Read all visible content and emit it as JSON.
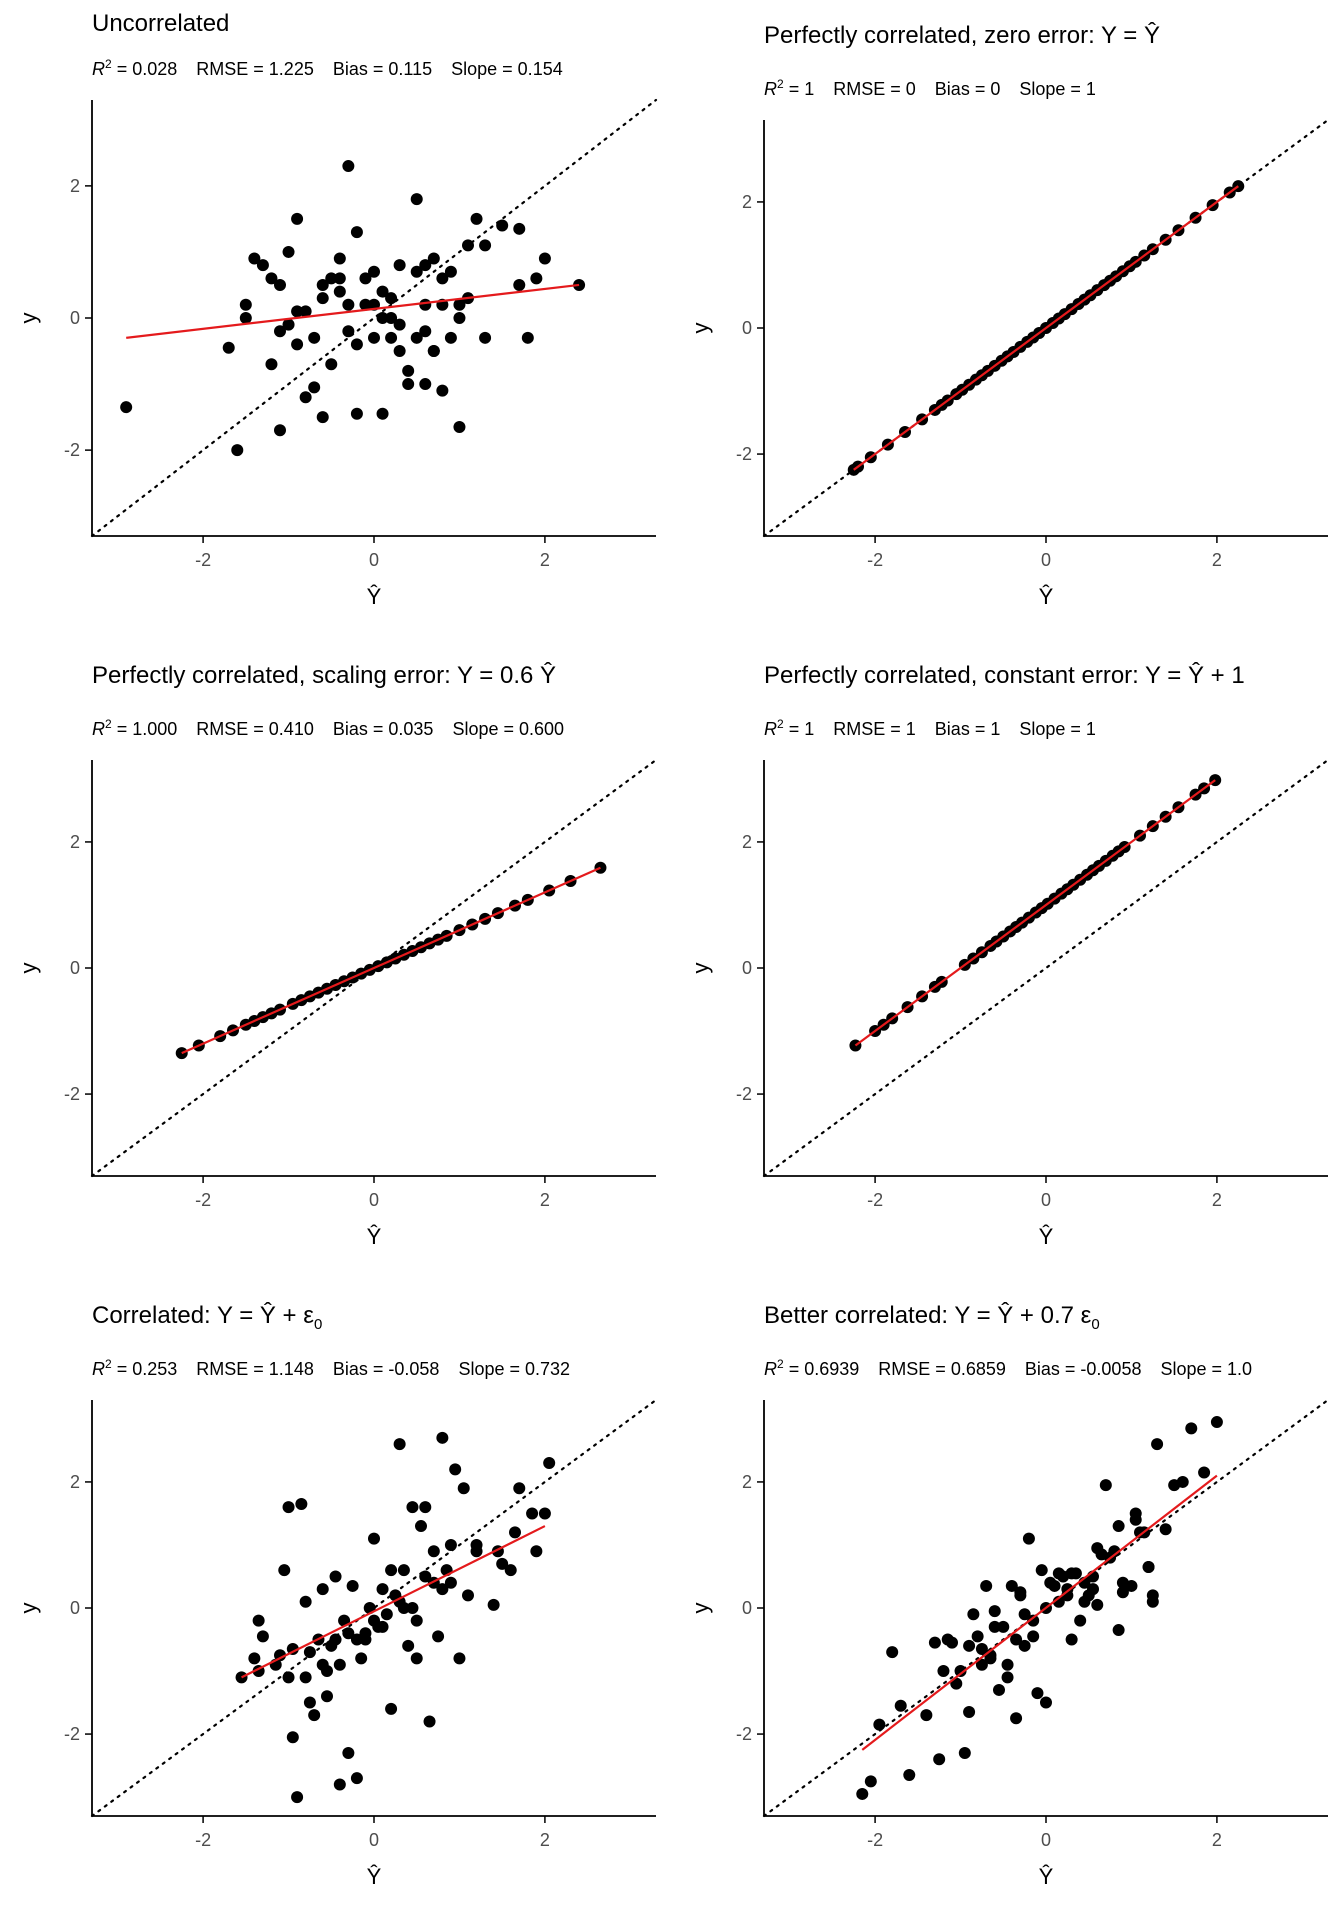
{
  "colors": {
    "points": "#000000",
    "fit_line": "#e41a1c",
    "identity_line": "#000000",
    "axis": "#000000",
    "tick_text": "#4d4d4d"
  },
  "chart_data": [
    {
      "type": "scatter",
      "title": "Uncorrelated",
      "stats": {
        "r2_label": "R",
        "r2_sup": "2",
        "r2": "= 0.028",
        "rmse": "RMSE = 1.225",
        "bias": "Bias = 0.115",
        "slope": "Slope = 0.154"
      },
      "xlabel": "Ŷ",
      "ylabel": "y",
      "xlim": [
        -3.3,
        3.3
      ],
      "ylim": [
        -3.3,
        3.3
      ],
      "xticks": [
        -2,
        0,
        2
      ],
      "yticks": [
        -2,
        0,
        2
      ],
      "tick_labels": [
        "-2",
        "0",
        "2"
      ],
      "fit_line": [
        [
          -2.9,
          -0.3
        ],
        [
          2.4,
          0.5
        ]
      ],
      "x": [
        -2.9,
        -1.6,
        -1.5,
        -1.3,
        -1.2,
        -1.1,
        -1.1,
        -1.0,
        -0.9,
        -0.9,
        -0.8,
        -0.7,
        -0.6,
        -0.5,
        -0.5,
        -0.4,
        -0.4,
        -0.3,
        -0.3,
        -0.2,
        -0.2,
        -0.1,
        -0.1,
        0.0,
        0.0,
        0.1,
        0.1,
        0.2,
        0.2,
        0.3,
        0.3,
        0.4,
        0.5,
        0.5,
        0.6,
        0.6,
        0.7,
        0.7,
        0.8,
        0.8,
        0.9,
        1.0,
        1.0,
        1.1,
        1.2,
        1.3,
        1.5,
        1.7,
        1.8,
        1.9,
        2.0,
        2.4,
        -1.7,
        -1.4,
        -1.0,
        -0.8,
        -0.6,
        -0.2,
        0.0,
        0.3,
        0.6,
        0.8,
        1.1,
        -1.2,
        -0.6,
        0.2,
        0.7,
        1.3,
        -0.9,
        -0.3,
        0.5,
        1.0,
        -1.5,
        -0.4,
        0.4,
        1.7,
        -1.1,
        0.1,
        0.9,
        -0.7,
        0.6
      ],
      "y": [
        -1.35,
        -2.0,
        0.0,
        0.8,
        -0.7,
        -1.7,
        0.5,
        1.0,
        1.5,
        -0.4,
        0.1,
        -0.3,
        -1.5,
        -0.7,
        0.6,
        0.4,
        0.9,
        2.3,
        -0.2,
        -0.4,
        -1.45,
        0.6,
        0.2,
        -0.3,
        0.7,
        0.4,
        -1.45,
        0.0,
        -0.3,
        0.8,
        -0.5,
        -1.0,
        1.8,
        0.7,
        0.8,
        -1.0,
        0.9,
        -0.5,
        0.6,
        -1.1,
        -0.3,
        -1.65,
        0.0,
        1.1,
        1.5,
        -0.3,
        1.4,
        1.35,
        -0.3,
        0.6,
        0.9,
        0.5,
        -0.45,
        0.9,
        -0.1,
        -1.2,
        0.3,
        1.3,
        0.2,
        -0.1,
        -0.2,
        0.2,
        0.3,
        0.6,
        0.5,
        0.3,
        -0.5,
        1.1,
        0.1,
        0.2,
        -0.3,
        0.2,
        0.2,
        0.6,
        -0.8,
        0.5,
        -0.2,
        0.0,
        0.7,
        -1.05,
        0.2
      ],
      "identity": true
    },
    {
      "type": "scatter",
      "title": "Perfectly correlated, zero error: Y = Ŷ",
      "stats": {
        "r2_label": "R",
        "r2_sup": "2",
        "r2": "= 1",
        "rmse": "RMSE = 0",
        "bias": "Bias = 0",
        "slope": "Slope = 1"
      },
      "xlabel": "Ŷ",
      "ylabel": "y",
      "xlim": [
        -3.3,
        3.3
      ],
      "ylim": [
        -3.3,
        3.3
      ],
      "xticks": [
        -2,
        0,
        2
      ],
      "yticks": [
        -2,
        0,
        2
      ],
      "tick_labels": [
        "-2",
        "0",
        "2"
      ],
      "fit_line": [
        [
          -2.25,
          -2.25
        ],
        [
          2.25,
          2.25
        ]
      ],
      "x": [
        -2.25,
        -2.2,
        -2.05,
        -1.85,
        -1.65,
        -1.45,
        -1.3,
        -1.22,
        -1.15,
        -1.05,
        -0.98,
        -0.9,
        -0.82,
        -0.75,
        -0.68,
        -0.6,
        -0.52,
        -0.45,
        -0.38,
        -0.3,
        -0.22,
        -0.15,
        -0.08,
        0.0,
        0.08,
        0.15,
        0.22,
        0.3,
        0.38,
        0.45,
        0.52,
        0.6,
        0.68,
        0.75,
        0.82,
        0.9,
        0.98,
        1.05,
        1.15,
        1.25,
        1.4,
        1.55,
        1.75,
        1.95,
        2.15,
        2.25
      ],
      "y": [
        -2.25,
        -2.2,
        -2.05,
        -1.85,
        -1.65,
        -1.45,
        -1.3,
        -1.22,
        -1.15,
        -1.05,
        -0.98,
        -0.9,
        -0.82,
        -0.75,
        -0.68,
        -0.6,
        -0.52,
        -0.45,
        -0.38,
        -0.3,
        -0.22,
        -0.15,
        -0.08,
        0.0,
        0.08,
        0.15,
        0.22,
        0.3,
        0.38,
        0.45,
        0.52,
        0.6,
        0.68,
        0.75,
        0.82,
        0.9,
        0.98,
        1.05,
        1.15,
        1.25,
        1.4,
        1.55,
        1.75,
        1.95,
        2.15,
        2.25
      ],
      "identity": true
    },
    {
      "type": "scatter",
      "title": "Perfectly correlated, scaling error: Y = 0.6 Ŷ",
      "stats": {
        "r2_label": "R",
        "r2_sup": "2",
        "r2": "= 1.000",
        "rmse": "RMSE = 0.410",
        "bias": "Bias = 0.035",
        "slope": "Slope = 0.600"
      },
      "xlabel": "Ŷ",
      "ylabel": "y",
      "xlim": [
        -3.3,
        3.3
      ],
      "ylim": [
        -3.3,
        3.3
      ],
      "xticks": [
        -2,
        0,
        2
      ],
      "yticks": [
        -2,
        0,
        2
      ],
      "tick_labels": [
        "-2",
        "0",
        "2"
      ],
      "fit_line": [
        [
          -2.25,
          -1.35
        ],
        [
          2.65,
          1.59
        ]
      ],
      "x": [
        -2.25,
        -2.05,
        -1.8,
        -1.65,
        -1.5,
        -1.4,
        -1.3,
        -1.2,
        -1.1,
        -0.95,
        -0.85,
        -0.75,
        -0.65,
        -0.55,
        -0.45,
        -0.35,
        -0.25,
        -0.15,
        -0.05,
        0.05,
        0.15,
        0.25,
        0.35,
        0.45,
        0.55,
        0.65,
        0.75,
        0.85,
        1.0,
        1.15,
        1.3,
        1.45,
        1.65,
        1.8,
        2.05,
        2.3,
        2.65
      ],
      "y": [
        -1.35,
        -1.23,
        -1.08,
        -0.99,
        -0.9,
        -0.84,
        -0.78,
        -0.72,
        -0.66,
        -0.57,
        -0.51,
        -0.45,
        -0.39,
        -0.33,
        -0.27,
        -0.21,
        -0.15,
        -0.09,
        -0.03,
        0.03,
        0.09,
        0.15,
        0.21,
        0.27,
        0.33,
        0.39,
        0.45,
        0.51,
        0.6,
        0.69,
        0.78,
        0.87,
        0.99,
        1.08,
        1.23,
        1.38,
        1.59
      ],
      "identity": true
    },
    {
      "type": "scatter",
      "title": "Perfectly correlated, constant error: Y = Ŷ + 1",
      "stats": {
        "r2_label": "R",
        "r2_sup": "2",
        "r2": "= 1",
        "rmse": "RMSE = 1",
        "bias": "Bias = 1",
        "slope": "Slope = 1"
      },
      "xlabel": "Ŷ",
      "ylabel": "y",
      "xlim": [
        -3.3,
        3.3
      ],
      "ylim": [
        -3.3,
        3.3
      ],
      "xticks": [
        -2,
        0,
        2
      ],
      "yticks": [
        -2,
        0,
        2
      ],
      "tick_labels": [
        "-2",
        "0",
        "2"
      ],
      "fit_line": [
        [
          -2.23,
          -1.23
        ],
        [
          1.98,
          2.98
        ]
      ],
      "x": [
        -2.23,
        -2.0,
        -1.9,
        -1.8,
        -1.62,
        -1.45,
        -1.3,
        -1.22,
        -0.95,
        -0.85,
        -0.75,
        -0.65,
        -0.58,
        -0.5,
        -0.42,
        -0.35,
        -0.28,
        -0.2,
        -0.12,
        -0.05,
        0.02,
        0.1,
        0.18,
        0.25,
        0.32,
        0.4,
        0.48,
        0.55,
        0.62,
        0.7,
        0.78,
        0.85,
        0.92,
        1.1,
        1.25,
        1.4,
        1.55,
        1.75,
        1.85,
        1.98
      ],
      "y": [
        -1.23,
        -1.0,
        -0.9,
        -0.8,
        -0.62,
        -0.45,
        -0.3,
        -0.22,
        0.05,
        0.15,
        0.25,
        0.35,
        0.42,
        0.5,
        0.58,
        0.65,
        0.72,
        0.8,
        0.88,
        0.95,
        1.02,
        1.1,
        1.18,
        1.25,
        1.32,
        1.4,
        1.48,
        1.55,
        1.62,
        1.7,
        1.78,
        1.85,
        1.92,
        2.1,
        2.25,
        2.4,
        2.55,
        2.75,
        2.85,
        2.98
      ],
      "identity": true
    },
    {
      "type": "scatter",
      "title_prefix": "Correlated: Y = Ŷ + ε",
      "title_sub": "0",
      "stats": {
        "r2_label": "R",
        "r2_sup": "2",
        "r2": "= 0.253",
        "rmse": "RMSE = 1.148",
        "bias": "Bias = -0.058",
        "slope": "Slope = 0.732"
      },
      "xlabel": "Ŷ",
      "ylabel": "y",
      "xlim": [
        -3.3,
        3.3
      ],
      "ylim": [
        -3.3,
        3.3
      ],
      "xticks": [
        -2,
        0,
        2
      ],
      "yticks": [
        -2,
        0,
        2
      ],
      "tick_labels": [
        "-2",
        "0",
        "2"
      ],
      "fit_line": [
        [
          -1.55,
          -1.1
        ],
        [
          2.0,
          1.3
        ]
      ],
      "x": [
        -1.55,
        -1.4,
        -1.35,
        -1.3,
        -1.1,
        -1.05,
        -1.0,
        -0.95,
        -0.9,
        -0.85,
        -0.8,
        -0.75,
        -0.7,
        -0.65,
        -0.6,
        -0.55,
        -0.5,
        -0.45,
        -0.4,
        -0.35,
        -0.3,
        -0.25,
        -0.2,
        -0.15,
        -0.1,
        -0.05,
        0.0,
        0.05,
        0.1,
        0.15,
        0.2,
        0.25,
        0.3,
        0.35,
        0.4,
        0.45,
        0.5,
        0.55,
        0.6,
        0.65,
        0.7,
        0.75,
        0.8,
        0.85,
        0.9,
        1.0,
        1.05,
        1.1,
        1.4,
        1.45,
        1.6,
        1.65,
        1.7,
        1.9,
        2.0,
        2.05,
        -1.35,
        -1.15,
        -0.95,
        -0.75,
        -0.55,
        -0.4,
        -0.2,
        0.0,
        0.2,
        0.35,
        0.5,
        0.7,
        0.9,
        1.2,
        1.5,
        1.85,
        -1.0,
        -0.6,
        -0.3,
        0.1,
        0.45,
        0.8,
        1.2,
        -0.8,
        0.6,
        0.3,
        -0.1,
        0.95,
        -0.45
      ],
      "y": [
        -1.1,
        -0.8,
        -0.2,
        -0.45,
        -0.75,
        0.6,
        1.6,
        -2.05,
        -3.0,
        1.65,
        -1.1,
        -1.5,
        -1.7,
        -0.5,
        0.3,
        -1.4,
        -0.6,
        0.5,
        -2.8,
        -0.2,
        -2.3,
        0.35,
        -2.7,
        -0.8,
        -0.4,
        0.0,
        1.1,
        -0.3,
        0.3,
        -0.1,
        -1.6,
        0.2,
        0.1,
        0.6,
        -0.6,
        1.6,
        -0.8,
        1.3,
        0.5,
        -1.8,
        0.9,
        -0.45,
        2.7,
        0.6,
        0.4,
        -0.8,
        1.9,
        0.2,
        0.05,
        0.9,
        0.6,
        1.2,
        1.9,
        0.9,
        1.5,
        2.3,
        -1.0,
        -0.9,
        -0.65,
        -0.7,
        -1.0,
        -0.9,
        -0.5,
        -0.2,
        0.6,
        0.0,
        -0.2,
        0.4,
        1.0,
        1.0,
        0.7,
        1.5,
        -1.1,
        -0.9,
        -0.4,
        -0.3,
        0.0,
        0.3,
        0.9,
        0.1,
        1.6,
        2.6,
        -0.5,
        2.2,
        -0.5
      ],
      "identity": true
    },
    {
      "type": "scatter",
      "title_prefix": "Better correlated: Y = Ŷ + 0.7 ε",
      "title_sub": "0",
      "stats": {
        "r2_label": "R",
        "r2_sup": "2",
        "r2": "= 0.6939",
        "rmse": "RMSE = 0.6859",
        "bias": "Bias = -0.0058",
        "slope": "Slope = 1.0"
      },
      "xlabel": "Ŷ",
      "ylabel": "y",
      "xlim": [
        -3.3,
        3.3
      ],
      "ylim": [
        -3.3,
        3.3
      ],
      "xticks": [
        -2,
        0,
        2
      ],
      "yticks": [
        -2,
        0,
        2
      ],
      "tick_labels": [
        "-2",
        "0",
        "2"
      ],
      "fit_line": [
        [
          -2.15,
          -2.25
        ],
        [
          2.0,
          2.1
        ]
      ],
      "x": [
        -2.15,
        -2.05,
        -1.95,
        -1.8,
        -1.7,
        -1.6,
        -1.4,
        -1.3,
        -1.25,
        -1.15,
        -1.1,
        -1.0,
        -0.95,
        -0.9,
        -0.85,
        -0.8,
        -0.75,
        -0.7,
        -0.65,
        -0.6,
        -0.55,
        -0.5,
        -0.45,
        -0.4,
        -0.35,
        -0.3,
        -0.25,
        -0.2,
        -0.15,
        -0.1,
        -0.05,
        0.0,
        0.05,
        0.1,
        0.15,
        0.2,
        0.25,
        0.3,
        0.35,
        0.4,
        0.45,
        0.5,
        0.55,
        0.6,
        0.65,
        0.7,
        0.8,
        0.85,
        0.9,
        1.0,
        1.05,
        1.1,
        1.2,
        1.25,
        1.3,
        1.4,
        1.5,
        1.6,
        1.7,
        1.85,
        2.0,
        -1.2,
        -0.9,
        -0.6,
        -0.3,
        0.0,
        0.3,
        0.6,
        0.9,
        1.2,
        -1.05,
        -0.75,
        -0.45,
        -0.15,
        0.15,
        0.45,
        0.75,
        1.05,
        -0.25,
        0.25,
        0.55,
        0.85,
        1.15,
        1.25,
        -0.65,
        -0.35
      ],
      "y": [
        -2.95,
        -2.75,
        -1.85,
        -0.7,
        -1.55,
        -2.65,
        -1.7,
        -0.55,
        -2.4,
        -0.5,
        -0.55,
        -1.0,
        -2.3,
        -1.65,
        -0.1,
        -0.45,
        -0.65,
        0.35,
        -0.75,
        -0.05,
        -1.3,
        -0.3,
        -0.9,
        0.35,
        -1.75,
        0.2,
        -0.6,
        1.1,
        -0.2,
        -1.35,
        0.6,
        -1.5,
        0.4,
        0.35,
        0.1,
        0.5,
        0.2,
        0.55,
        0.55,
        -0.2,
        0.4,
        0.2,
        0.3,
        0.95,
        0.85,
        1.95,
        0.9,
        -0.35,
        0.25,
        0.35,
        1.4,
        1.2,
        0.65,
        0.1,
        2.6,
        1.25,
        1.95,
        2.0,
        2.85,
        2.15,
        2.95,
        -1.0,
        -0.6,
        -0.3,
        0.25,
        0.0,
        -0.5,
        0.05,
        0.4,
        0.65,
        -1.2,
        -0.9,
        -1.1,
        -0.45,
        0.55,
        0.1,
        0.8,
        1.5,
        -0.1,
        0.3,
        0.5,
        1.3,
        1.2,
        0.2,
        -0.8,
        -0.5
      ],
      "identity": true
    }
  ]
}
